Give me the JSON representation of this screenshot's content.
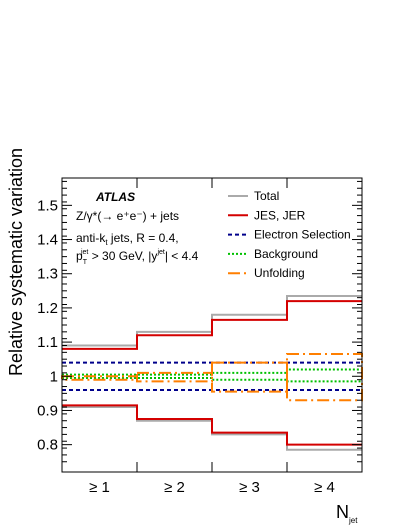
{
  "chart_data": {
    "type": "line",
    "ylabel": "Relative systematic variation",
    "xlabel_main": "N",
    "xlabel_sub": "jet",
    "categories": [
      "≥ 1",
      "≥ 2",
      "≥ 3",
      "≥ 4"
    ],
    "ylim": [
      0.72,
      1.58
    ],
    "y_ticks": [
      "0.8",
      "0.9",
      "1",
      "1.1",
      "1.2",
      "1.3",
      "1.4",
      "1.5"
    ],
    "experiment": "ATLAS",
    "info": {
      "line1": "Z/γ*(→ e⁺e⁻) + jets",
      "line2_main": "anti-k",
      "line2_sub": "t",
      "line2_rest": " jets, R = 0.4,",
      "line3_p": "p",
      "line3_p_sub": "T",
      "line3_p_sup": "jet",
      "line3_mid": " > 30 GeV, |y",
      "line3_y_sup": "jet",
      "line3_end": "| < 4.4"
    },
    "series": [
      {
        "name": "Total",
        "color": "#aaaaaa",
        "dash": "solid",
        "up": [
          1.09,
          1.13,
          1.18,
          1.235
        ],
        "down": [
          0.91,
          0.87,
          0.83,
          0.785
        ]
      },
      {
        "name": "JES, JER",
        "color": "#d40000",
        "dash": "solid",
        "up": [
          1.08,
          1.12,
          1.165,
          1.22
        ],
        "down": [
          0.915,
          0.875,
          0.835,
          0.8
        ]
      },
      {
        "name": "Electron Selection",
        "color": "#00008b",
        "dash": "dashed",
        "up": [
          1.04,
          1.04,
          1.04,
          1.04
        ],
        "down": [
          0.96,
          0.96,
          0.96,
          0.96
        ]
      },
      {
        "name": "Background",
        "color": "#00c000",
        "dash": "dotted",
        "up": [
          1.005,
          1.005,
          1.01,
          1.02
        ],
        "down": [
          0.995,
          0.995,
          0.99,
          0.985
        ]
      },
      {
        "name": "Unfolding",
        "color": "#ff7f00",
        "dash": "dashdot",
        "up": [
          1.0,
          1.01,
          1.04,
          1.065
        ],
        "down": [
          0.99,
          0.985,
          0.955,
          0.93
        ]
      }
    ],
    "legend_position": "top-right",
    "grid": false
  }
}
